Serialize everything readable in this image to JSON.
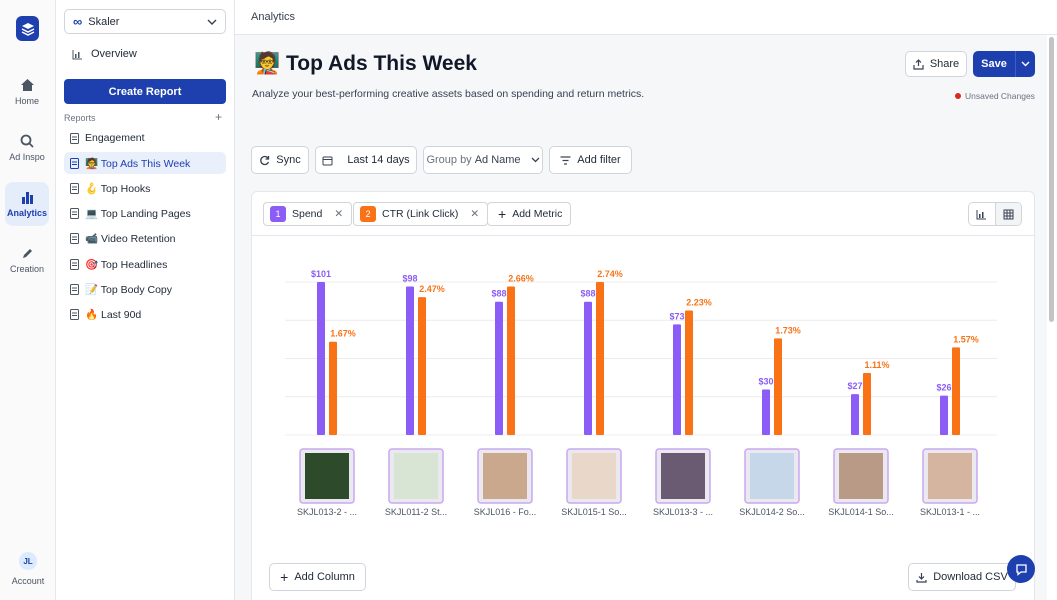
{
  "rail": {
    "items": [
      {
        "label": "Home",
        "icon": "home-icon"
      },
      {
        "label": "Ad Inspo",
        "icon": "search-icon"
      },
      {
        "label": "Analytics",
        "icon": "bar-chart-icon"
      },
      {
        "label": "Creation",
        "icon": "pen-icon"
      }
    ],
    "account": {
      "initials": "JL",
      "label": "Account"
    }
  },
  "sidebar": {
    "workspace": "Skaler",
    "overview": "Overview",
    "create_report": "Create Report",
    "reports_heading": "Reports",
    "reports": [
      {
        "label": "Engagement"
      },
      {
        "label": "🧑‍🏫 Top Ads This Week"
      },
      {
        "label": "🪝 Top Hooks"
      },
      {
        "label": "💻 Top Landing Pages"
      },
      {
        "label": "📹 Video Retention"
      },
      {
        "label": "🎯 Top Headlines"
      },
      {
        "label": "📝 Top Body Copy"
      },
      {
        "label": "🔥 Last 90d"
      }
    ]
  },
  "header": {
    "breadcrumb": "Analytics"
  },
  "page": {
    "title": "🧑‍🏫 Top Ads This Week",
    "subtitle": "Analyze your best-performing creative assets based on spending and return metrics.",
    "share": "Share",
    "save": "Save",
    "unsaved": "Unsaved Changes"
  },
  "filters": {
    "sync": "Sync",
    "date_range": "Last 14 days",
    "group_prefix": "Group by",
    "group_value": "Ad Name",
    "add_filter": "Add filter"
  },
  "metrics": [
    {
      "index": "1",
      "label": "Spend",
      "color": "#8b5cf6"
    },
    {
      "index": "2",
      "label": "CTR (Link Click)",
      "color": "#f97316"
    }
  ],
  "add_metric": "Add Metric",
  "chart_data": {
    "type": "bar",
    "categories": [
      "SKJL013-2 - ...",
      "SKJL011-2 St...",
      "SKJL016 - Fo...",
      "SKJL015-1 So...",
      "SKJL013-3 - ...",
      "SKJL014-2 So...",
      "SKJL014-1 So...",
      "SKJL013-1 - ..."
    ],
    "series": [
      {
        "name": "Spend",
        "values": [
          101,
          98,
          88,
          88,
          73,
          30,
          27,
          26
        ],
        "labels": [
          "$101",
          "$98",
          "$88",
          "$88",
          "$73",
          "$30",
          "$27",
          "$26"
        ],
        "color": "#8b5cf6"
      },
      {
        "name": "CTR (Link Click)",
        "values": [
          1.67,
          2.47,
          2.66,
          2.74,
          2.23,
          1.73,
          1.11,
          1.57
        ],
        "labels": [
          "1.67%",
          "2.47%",
          "2.66%",
          "2.74%",
          "2.23%",
          "1.73%",
          "1.11%",
          "1.57%"
        ],
        "color": "#f97316"
      }
    ],
    "grid": true
  },
  "footer": {
    "add_column": "Add Column",
    "download_csv": "Download CSV"
  }
}
